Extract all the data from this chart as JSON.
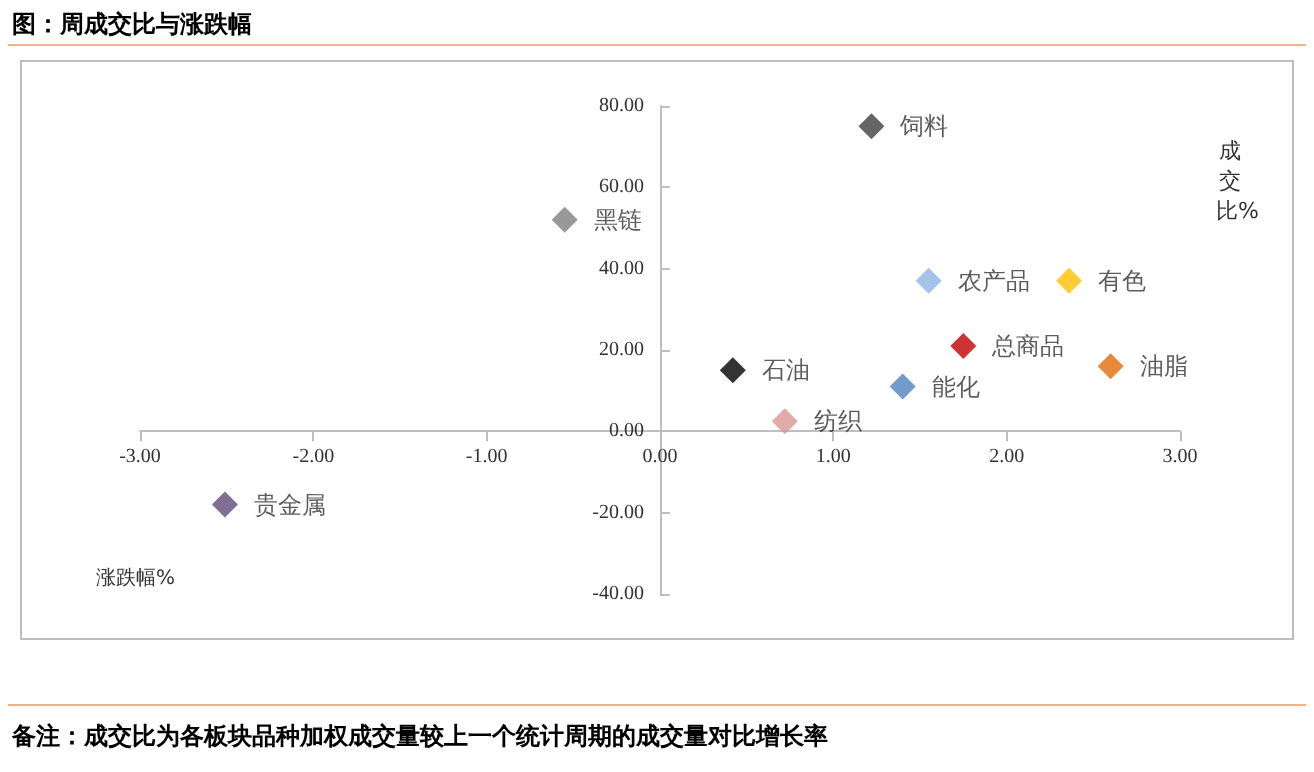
{
  "chart_data": {
    "type": "scatter",
    "title": "图：周成交比与涨跌幅",
    "xlabel": "涨跌幅%",
    "ylabel": "成交比%",
    "marker": "diamond",
    "legend": false,
    "grid": false,
    "xlim": [
      -3,
      3
    ],
    "xticks": [
      {
        "value": -3,
        "label": "-3.00"
      },
      {
        "value": -2,
        "label": "-2.00"
      },
      {
        "value": -1,
        "label": "-1.00"
      },
      {
        "value": 0,
        "label": "0.00"
      },
      {
        "value": 1,
        "label": "1.00"
      },
      {
        "value": 2,
        "label": "2.00"
      },
      {
        "value": 3,
        "label": "3.00"
      }
    ],
    "ylim": [
      -40,
      80
    ],
    "yticks": [
      {
        "value": -40,
        "label": "-40.00"
      },
      {
        "value": -20,
        "label": "-20.00"
      },
      {
        "value": 0,
        "label": "0.00"
      },
      {
        "value": 20,
        "label": "20.00"
      },
      {
        "value": 40,
        "label": "40.00"
      },
      {
        "value": 60,
        "label": "60.00"
      },
      {
        "value": 80,
        "label": "80.00"
      }
    ],
    "series": [
      {
        "name": "饲料",
        "color": "#404040",
        "x": [
          1.22
        ],
        "values": [
          75
        ]
      },
      {
        "name": "黑链",
        "color": "#808080",
        "x": [
          -0.55
        ],
        "values": [
          52
        ]
      },
      {
        "name": "农产品",
        "color": "#8eb4e3",
        "x": [
          1.55
        ],
        "values": [
          37
        ]
      },
      {
        "name": "有色",
        "color": "#ffc000",
        "x": [
          2.36
        ],
        "values": [
          37
        ]
      },
      {
        "name": "总商品",
        "color": "#c00000",
        "x": [
          1.75
        ],
        "values": [
          21
        ]
      },
      {
        "name": "油脂",
        "color": "#e46c0a",
        "x": [
          2.6
        ],
        "values": [
          16
        ]
      },
      {
        "name": "石油",
        "color": "#000000",
        "x": [
          0.42
        ],
        "values": [
          15
        ]
      },
      {
        "name": "能化",
        "color": "#4f81bd",
        "x": [
          1.4
        ],
        "values": [
          11
        ]
      },
      {
        "name": "纺织",
        "color": "#d99694",
        "x": [
          0.72
        ],
        "values": [
          2.5
        ]
      },
      {
        "name": "贵金属",
        "color": "#604a7b",
        "x": [
          -2.51
        ],
        "values": [
          -18
        ]
      }
    ],
    "annotations": [
      "备注：成交比为各板块品种加权成交量较上一个统计周期的成交量对比增长率"
    ]
  }
}
